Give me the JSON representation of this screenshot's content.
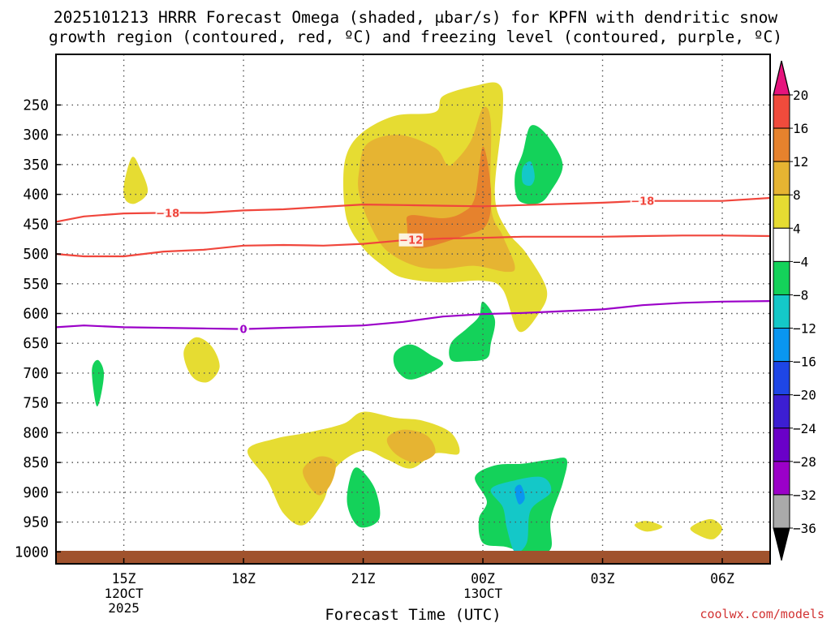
{
  "chart_data": {
    "type": "heatmap",
    "title_line1": "2025101213 HRRR Forecast Omega (shaded, μbar/s) for KPFN with dendritic snow",
    "title_line2": "growth region (contoured, red, ºC) and freezing level (contoured, purple, ºC)",
    "xlabel": "Forecast Time (UTC)",
    "credit": "coolwx.com/models",
    "x_range_hours": [
      13.3,
      31.2
    ],
    "y_range_hpa": [
      1020,
      165
    ],
    "x_ticks": [
      {
        "hour": 15,
        "label": "15Z",
        "sub1": "12OCT",
        "sub2": "2025"
      },
      {
        "hour": 18,
        "label": "18Z",
        "sub1": "",
        "sub2": ""
      },
      {
        "hour": 21,
        "label": "21Z",
        "sub1": "",
        "sub2": ""
      },
      {
        "hour": 24,
        "label": "00Z",
        "sub1": "13OCT",
        "sub2": ""
      },
      {
        "hour": 27,
        "label": "03Z",
        "sub1": "",
        "sub2": ""
      },
      {
        "hour": 30,
        "label": "06Z",
        "sub1": "",
        "sub2": ""
      }
    ],
    "y_ticks": [
      {
        "value": 250,
        "label": "250"
      },
      {
        "value": 300,
        "label": "300"
      },
      {
        "value": 350,
        "label": "350"
      },
      {
        "value": 400,
        "label": "400"
      },
      {
        "value": 450,
        "label": "450"
      },
      {
        "value": 500,
        "label": "500"
      },
      {
        "value": 550,
        "label": "550"
      },
      {
        "value": 600,
        "label": "600"
      },
      {
        "value": 650,
        "label": "650"
      },
      {
        "value": 700,
        "label": "700"
      },
      {
        "value": 750,
        "label": "750"
      },
      {
        "value": 800,
        "label": "800"
      },
      {
        "value": 850,
        "label": "850"
      },
      {
        "value": 900,
        "label": "900"
      },
      {
        "value": 950,
        "label": "950"
      },
      {
        "value": 1000,
        "label": "1000"
      }
    ],
    "colorbar": {
      "bins": [
        {
          "lo": -36,
          "hi": -32,
          "color": "#aaaaaa"
        },
        {
          "lo": -32,
          "hi": -28,
          "color": "#9b00c8"
        },
        {
          "lo": -28,
          "hi": -24,
          "color": "#6a00c8"
        },
        {
          "lo": -24,
          "hi": -20,
          "color": "#3c1ed2"
        },
        {
          "lo": -20,
          "hi": -16,
          "color": "#1e46e6"
        },
        {
          "lo": -16,
          "hi": -12,
          "color": "#0a96f0"
        },
        {
          "lo": -12,
          "hi": -8,
          "color": "#14c8c8"
        },
        {
          "lo": -8,
          "hi": -4,
          "color": "#14d25a"
        },
        {
          "lo": -4,
          "hi": 4,
          "color": "#ffffff"
        },
        {
          "lo": 4,
          "hi": 8,
          "color": "#e6dc32"
        },
        {
          "lo": 8,
          "hi": 12,
          "color": "#e6b432"
        },
        {
          "lo": 12,
          "hi": 16,
          "color": "#e6822d"
        },
        {
          "lo": 16,
          "hi": 20,
          "color": "#f04b3c"
        }
      ],
      "top_color": "#e6147d",
      "bottom_color": "#000000",
      "labels": [
        "20",
        "16",
        "12",
        "8",
        "4",
        "−4",
        "−8",
        "−12",
        "−16",
        "−20",
        "−24",
        "−28",
        "−32",
        "−36"
      ]
    },
    "ground_color": "#a0522d",
    "contours": [
      {
        "name": "-18C",
        "label": "−18",
        "color": "#f0463c",
        "label_at_hours": [
          16.1,
          28.0
        ],
        "points": [
          [
            13.3,
            446
          ],
          [
            14.0,
            437
          ],
          [
            15.0,
            432
          ],
          [
            16.0,
            431
          ],
          [
            17.0,
            431
          ],
          [
            18.0,
            427
          ],
          [
            19.0,
            425
          ],
          [
            20.0,
            421
          ],
          [
            21.0,
            417
          ],
          [
            22.0,
            418
          ],
          [
            23.0,
            419
          ],
          [
            24.0,
            420
          ],
          [
            25.0,
            418
          ],
          [
            26.0,
            416
          ],
          [
            27.0,
            414
          ],
          [
            28.0,
            411
          ],
          [
            29.0,
            411
          ],
          [
            30.0,
            411
          ],
          [
            31.2,
            406
          ]
        ]
      },
      {
        "name": "-12C",
        "label": "−12",
        "color": "#f0463c",
        "label_at_hours": [
          22.2
        ],
        "points": [
          [
            13.3,
            500
          ],
          [
            14.0,
            504
          ],
          [
            15.0,
            504
          ],
          [
            16.0,
            496
          ],
          [
            17.0,
            493
          ],
          [
            18.0,
            486
          ],
          [
            19.0,
            485
          ],
          [
            20.0,
            486
          ],
          [
            21.0,
            483
          ],
          [
            22.0,
            477
          ],
          [
            23.0,
            474
          ],
          [
            24.0,
            473
          ],
          [
            25.0,
            471
          ],
          [
            26.0,
            471
          ],
          [
            27.0,
            471
          ],
          [
            28.0,
            470
          ],
          [
            29.0,
            469
          ],
          [
            30.0,
            469
          ],
          [
            31.2,
            470
          ]
        ]
      },
      {
        "name": "0C",
        "label": "0",
        "color": "#9b00c8",
        "label_at_hours": [
          18.0
        ],
        "points": [
          [
            13.3,
            623
          ],
          [
            14.0,
            620
          ],
          [
            15.0,
            623
          ],
          [
            16.0,
            624
          ],
          [
            17.0,
            625
          ],
          [
            18.0,
            626
          ],
          [
            19.0,
            624
          ],
          [
            20.0,
            622
          ],
          [
            21.0,
            620
          ],
          [
            22.0,
            614
          ],
          [
            23.0,
            605
          ],
          [
            24.0,
            601
          ],
          [
            25.0,
            599
          ],
          [
            26.0,
            596
          ],
          [
            27.0,
            593
          ],
          [
            28.0,
            586
          ],
          [
            29.0,
            582
          ],
          [
            30.0,
            580
          ],
          [
            31.2,
            579
          ]
        ]
      }
    ],
    "shaded_regions": [
      {
        "name": "updraft-main-4to8",
        "bin": 9,
        "points": [
          [
            20.5,
            380
          ],
          [
            20.6,
            330
          ],
          [
            21.0,
            295
          ],
          [
            21.8,
            268
          ],
          [
            22.8,
            262
          ],
          [
            23.0,
            235
          ],
          [
            23.8,
            218
          ],
          [
            24.4,
            215
          ],
          [
            24.5,
            260
          ],
          [
            24.3,
            400
          ],
          [
            24.6,
            460
          ],
          [
            25.1,
            500
          ],
          [
            25.6,
            560
          ],
          [
            25.4,
            600
          ],
          [
            24.9,
            630
          ],
          [
            24.5,
            560
          ],
          [
            24.0,
            545
          ],
          [
            23.0,
            548
          ],
          [
            22.0,
            540
          ],
          [
            21.5,
            520
          ],
          [
            21.0,
            490
          ],
          [
            20.6,
            445
          ]
        ]
      },
      {
        "name": "updraft-main-8to12",
        "bin": 10,
        "points": [
          [
            20.9,
            360
          ],
          [
            21.1,
            315
          ],
          [
            21.9,
            300
          ],
          [
            22.8,
            322
          ],
          [
            23.1,
            350
          ],
          [
            23.3,
            345
          ],
          [
            23.7,
            310
          ],
          [
            24.0,
            255
          ],
          [
            24.2,
            280
          ],
          [
            24.2,
            420
          ],
          [
            24.5,
            470
          ],
          [
            24.8,
            520
          ],
          [
            24.6,
            530
          ],
          [
            23.8,
            520
          ],
          [
            23.0,
            525
          ],
          [
            22.3,
            520
          ],
          [
            21.6,
            495
          ],
          [
            21.2,
            455
          ],
          [
            20.9,
            400
          ]
        ]
      },
      {
        "name": "updraft-main-12to16",
        "bin": 11,
        "points": [
          [
            22.1,
            450
          ],
          [
            22.2,
            435
          ],
          [
            23.0,
            440
          ],
          [
            23.5,
            430
          ],
          [
            23.8,
            405
          ],
          [
            24.0,
            320
          ],
          [
            24.2,
            390
          ],
          [
            24.1,
            450
          ],
          [
            23.5,
            470
          ],
          [
            22.3,
            490
          ]
        ]
      },
      {
        "name": "updraft-upper-left",
        "bin": 9,
        "points": [
          [
            15.0,
            385
          ],
          [
            15.2,
            338
          ],
          [
            15.4,
            355
          ],
          [
            15.6,
            395
          ],
          [
            15.3,
            415
          ],
          [
            15.05,
            410
          ]
        ]
      },
      {
        "name": "updraft-mid-left",
        "bin": 9,
        "points": [
          [
            16.5,
            665
          ],
          [
            16.8,
            640
          ],
          [
            17.2,
            655
          ],
          [
            17.4,
            690
          ],
          [
            17.1,
            715
          ],
          [
            16.7,
            705
          ]
        ]
      },
      {
        "name": "updraft-low-belt-4to8",
        "bin": 9,
        "points": [
          [
            18.1,
            830
          ],
          [
            18.8,
            810
          ],
          [
            19.6,
            800
          ],
          [
            20.5,
            785
          ],
          [
            21.0,
            765
          ],
          [
            21.8,
            775
          ],
          [
            22.5,
            780
          ],
          [
            23.2,
            800
          ],
          [
            23.4,
            835
          ],
          [
            22.8,
            835
          ],
          [
            22.2,
            860
          ],
          [
            21.6,
            845
          ],
          [
            21.0,
            830
          ],
          [
            20.3,
            860
          ],
          [
            20.0,
            915
          ],
          [
            19.5,
            955
          ],
          [
            19.0,
            935
          ],
          [
            18.6,
            880
          ]
        ]
      },
      {
        "name": "updraft-low-belt-8to12a",
        "bin": 10,
        "points": [
          [
            19.5,
            860
          ],
          [
            19.9,
            840
          ],
          [
            20.3,
            850
          ],
          [
            20.2,
            885
          ],
          [
            19.9,
            905
          ],
          [
            19.6,
            885
          ]
        ]
      },
      {
        "name": "updraft-low-belt-8to12b",
        "bin": 10,
        "points": [
          [
            21.6,
            810
          ],
          [
            22.0,
            795
          ],
          [
            22.6,
            805
          ],
          [
            22.8,
            835
          ],
          [
            22.3,
            850
          ],
          [
            21.8,
            835
          ]
        ]
      },
      {
        "name": "updraft-far-right-a",
        "bin": 9,
        "points": [
          [
            27.8,
            955
          ],
          [
            28.1,
            948
          ],
          [
            28.5,
            958
          ],
          [
            28.1,
            966
          ]
        ]
      },
      {
        "name": "updraft-far-right-b",
        "bin": 9,
        "points": [
          [
            29.2,
            960
          ],
          [
            29.7,
            945
          ],
          [
            30.0,
            960
          ],
          [
            29.8,
            978
          ],
          [
            29.5,
            975
          ]
        ]
      },
      {
        "name": "downdraft-upper",
        "bin": 7,
        "points": [
          [
            25.0,
            330
          ],
          [
            25.2,
            285
          ],
          [
            25.6,
            300
          ],
          [
            26.0,
            350
          ],
          [
            25.7,
            395
          ],
          [
            25.4,
            415
          ],
          [
            24.9,
            410
          ],
          [
            24.8,
            370
          ]
        ]
      },
      {
        "name": "downdraft-upper-core",
        "bin": 6,
        "points": [
          [
            25.0,
            355
          ],
          [
            25.2,
            345
          ],
          [
            25.3,
            370
          ],
          [
            25.2,
            385
          ],
          [
            25.0,
            380
          ]
        ]
      },
      {
        "name": "downdraft-mid-a",
        "bin": 7,
        "points": [
          [
            21.8,
            665
          ],
          [
            22.2,
            652
          ],
          [
            22.7,
            670
          ],
          [
            23.0,
            685
          ],
          [
            22.5,
            705
          ],
          [
            22.1,
            710
          ],
          [
            21.8,
            690
          ]
        ]
      },
      {
        "name": "downdraft-mid-b",
        "bin": 7,
        "points": [
          [
            23.2,
            650
          ],
          [
            23.6,
            625
          ],
          [
            23.9,
            605
          ],
          [
            24.0,
            580
          ],
          [
            24.3,
            610
          ],
          [
            24.2,
            650
          ],
          [
            24.1,
            675
          ],
          [
            23.6,
            680
          ],
          [
            23.2,
            678
          ]
        ]
      },
      {
        "name": "downdraft-left",
        "bin": 7,
        "points": [
          [
            14.2,
            695
          ],
          [
            14.35,
            678
          ],
          [
            14.5,
            700
          ],
          [
            14.4,
            745
          ],
          [
            14.3,
            752
          ]
        ]
      },
      {
        "name": "downdraft-low-small",
        "bin": 7,
        "points": [
          [
            20.7,
            870
          ],
          [
            20.9,
            860
          ],
          [
            21.3,
            895
          ],
          [
            21.4,
            945
          ],
          [
            20.9,
            958
          ],
          [
            20.6,
            920
          ]
        ]
      },
      {
        "name": "downdraft-low-large",
        "bin": 7,
        "points": [
          [
            23.8,
            875
          ],
          [
            24.3,
            855
          ],
          [
            25.0,
            852
          ],
          [
            25.7,
            845
          ],
          [
            26.1,
            845
          ],
          [
            26.0,
            885
          ],
          [
            25.7,
            945
          ],
          [
            25.7,
            995
          ],
          [
            25.2,
            1005
          ],
          [
            24.6,
            992
          ],
          [
            24.0,
            985
          ],
          [
            23.9,
            945
          ],
          [
            24.1,
            915
          ]
        ]
      },
      {
        "name": "downdraft-low-core",
        "bin": 6,
        "points": [
          [
            24.2,
            895
          ],
          [
            24.8,
            880
          ],
          [
            25.5,
            875
          ],
          [
            25.7,
            900
          ],
          [
            25.2,
            930
          ],
          [
            25.1,
            985
          ],
          [
            24.8,
            1000
          ],
          [
            24.6,
            960
          ],
          [
            24.5,
            925
          ]
        ]
      },
      {
        "name": "downdraft-low-core2",
        "bin": 5,
        "points": [
          [
            24.8,
            895
          ],
          [
            24.95,
            888
          ],
          [
            25.05,
            910
          ],
          [
            24.9,
            920
          ]
        ]
      }
    ]
  }
}
